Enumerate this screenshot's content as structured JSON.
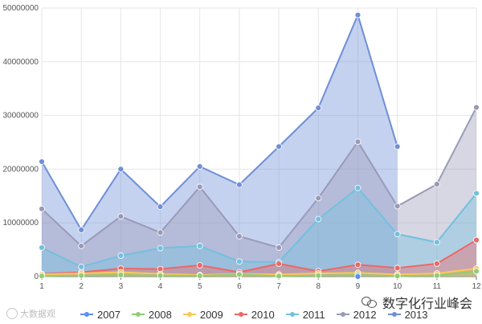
{
  "chart_data": {
    "type": "area",
    "x": [
      1,
      2,
      3,
      4,
      5,
      6,
      7,
      8,
      9,
      10,
      11,
      12
    ],
    "ylim": [
      0,
      50000000
    ],
    "yticks": [
      "0",
      "10000000",
      "20000000",
      "30000000",
      "40000000",
      "50000000"
    ],
    "grid": true,
    "legend_position": "bottom",
    "series": [
      {
        "name": "2007",
        "color": "#5b8ff9",
        "values": [
          null,
          null,
          null,
          null,
          null,
          null,
          null,
          null,
          0,
          null,
          null,
          null
        ]
      },
      {
        "name": "2008",
        "color": "#91cc75",
        "values": [
          100000,
          200000,
          300000,
          200000,
          150000,
          400000,
          100000,
          200000,
          300000,
          100000,
          200000,
          1000000
        ]
      },
      {
        "name": "2009",
        "color": "#fac858",
        "values": [
          400000,
          600000,
          800000,
          500000,
          300000,
          500000,
          400000,
          600000,
          700000,
          400000,
          600000,
          1500000
        ]
      },
      {
        "name": "2010",
        "color": "#ee6666",
        "values": [
          500000,
          800000,
          1500000,
          1400000,
          2100000,
          800000,
          2400000,
          1000000,
          2200000,
          1600000,
          2400000,
          6800000
        ]
      },
      {
        "name": "2011",
        "color": "#73c0de",
        "values": [
          5400000,
          1800000,
          3900000,
          5300000,
          5700000,
          2800000,
          2700000,
          10700000,
          16500000,
          7900000,
          6400000,
          15500000
        ]
      },
      {
        "name": "2012",
        "color": "#9a9ab8",
        "values": [
          12600000,
          5700000,
          11200000,
          8200000,
          16700000,
          7500000,
          5400000,
          14600000,
          25100000,
          13100000,
          17200000,
          31500000
        ]
      },
      {
        "name": "2013",
        "color": "#6f8fd6",
        "values": [
          21400000,
          8700000,
          20000000,
          13000000,
          20500000,
          17100000,
          24200000,
          31400000,
          48700000,
          24200000,
          null,
          null
        ]
      }
    ]
  },
  "watermarks": {
    "left": "大数据观",
    "right": "数字化行业峰会"
  }
}
